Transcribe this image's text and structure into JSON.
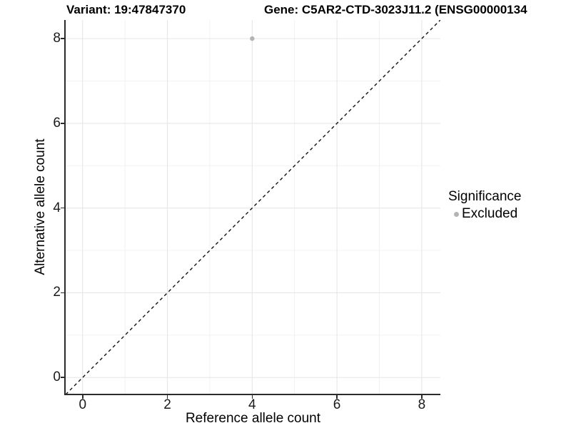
{
  "chart_data": {
    "type": "scatter",
    "titles": {
      "variant": "Variant: 19:47847370",
      "gene": "Gene: C5AR2-CTD-3023J11.2 (ENSG00000134"
    },
    "xlabel": "Reference allele count",
    "ylabel": "Alternative allele count",
    "xlim": [
      -0.4,
      8.44
    ],
    "ylim": [
      -0.4,
      8.44
    ],
    "xticks": [
      0,
      2,
      4,
      6,
      8
    ],
    "yticks": [
      0,
      2,
      4,
      6,
      8
    ],
    "xminor": [
      1,
      3,
      5,
      7
    ],
    "yminor": [
      1,
      3,
      5,
      7
    ],
    "grid": "major+minor",
    "identity_line": {
      "style": "dashed",
      "slope": 1,
      "intercept": 0,
      "color": "#111111"
    },
    "series": [
      {
        "name": "Excluded",
        "color": "#b4b4b4",
        "points": [
          {
            "x": 4,
            "y": 8
          }
        ]
      }
    ],
    "legend": {
      "title": "Significance",
      "position": "right",
      "items": [
        {
          "label": "Excluded",
          "color": "#b4b4b4"
        }
      ]
    },
    "colors": {
      "grid_major": "#e6e6e6",
      "grid_minor": "#f0f0f0",
      "axis_line": "#2b2b2b",
      "text": "#000000"
    }
  }
}
